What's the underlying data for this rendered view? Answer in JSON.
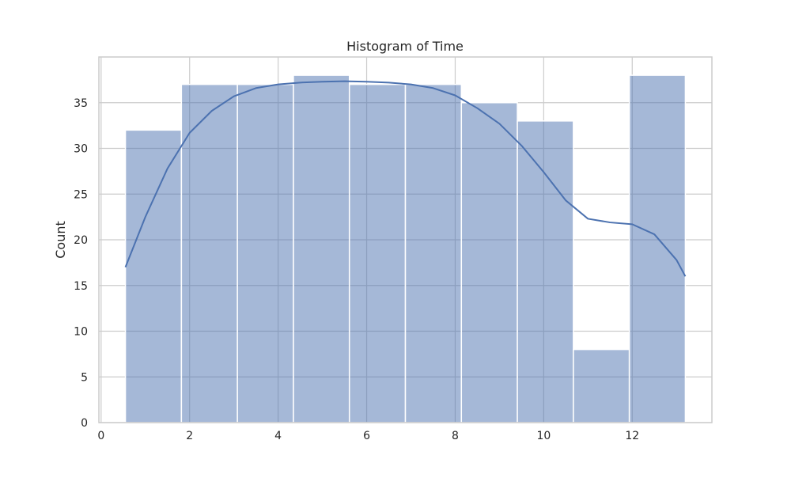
{
  "chart_data": {
    "type": "bar",
    "subtype": "histogram_with_kde",
    "title": "Histogram of Time",
    "xlabel": "",
    "ylabel": "Count",
    "xlim": [
      -0.05,
      13.8
    ],
    "ylim": [
      0,
      40
    ],
    "xticks": [
      0,
      2,
      4,
      6,
      8,
      10,
      12
    ],
    "yticks": [
      0,
      5,
      10,
      15,
      20,
      25,
      30,
      35
    ],
    "grid": true,
    "bins": [
      {
        "x0": 0.55,
        "x1": 1.815,
        "count": 32
      },
      {
        "x0": 1.815,
        "x1": 3.08,
        "count": 37
      },
      {
        "x0": 3.08,
        "x1": 4.345,
        "count": 37
      },
      {
        "x0": 4.345,
        "x1": 5.61,
        "count": 38
      },
      {
        "x0": 5.61,
        "x1": 6.875,
        "count": 37
      },
      {
        "x0": 6.875,
        "x1": 8.14,
        "count": 37
      },
      {
        "x0": 8.14,
        "x1": 9.405,
        "count": 35
      },
      {
        "x0": 9.405,
        "x1": 10.67,
        "count": 33
      },
      {
        "x0": 10.67,
        "x1": 11.935,
        "count": 8
      },
      {
        "x0": 11.935,
        "x1": 13.2,
        "count": 38
      }
    ],
    "kde": {
      "x": [
        0.55,
        1.0,
        1.5,
        2.0,
        2.5,
        3.0,
        3.5,
        4.0,
        4.5,
        5.0,
        5.5,
        6.0,
        6.5,
        7.0,
        7.5,
        8.0,
        8.5,
        9.0,
        9.5,
        10.0,
        10.5,
        11.0,
        11.5,
        12.0,
        12.5,
        13.0,
        13.2
      ],
      "y": [
        17.0,
        22.5,
        27.8,
        31.7,
        34.1,
        35.7,
        36.6,
        37.0,
        37.2,
        37.3,
        37.35,
        37.3,
        37.2,
        37.0,
        36.6,
        35.8,
        34.4,
        32.7,
        30.3,
        27.4,
        24.3,
        22.3,
        21.9,
        21.7,
        20.6,
        17.8,
        16.0
      ]
    },
    "colors": {
      "bar_fill": "#4c72b0",
      "bar_opacity": 0.5,
      "kde_line": "#4c72b0",
      "grid": "#cccccc",
      "spine": "#cccccc"
    }
  }
}
